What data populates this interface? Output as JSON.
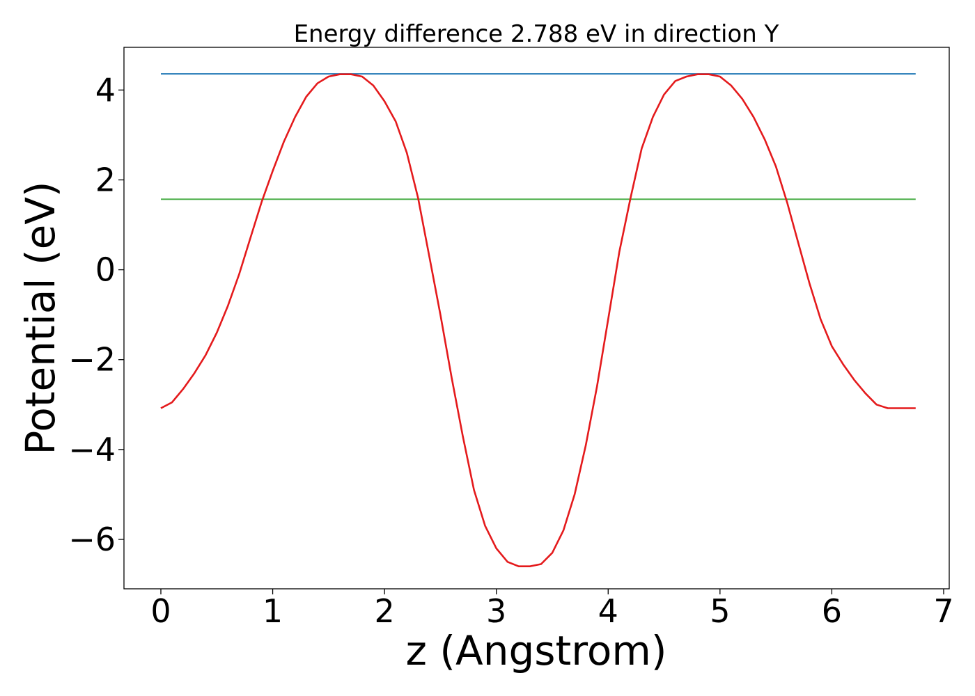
{
  "chart_data": {
    "type": "line",
    "title": "Energy difference 2.788 eV in direction Y",
    "xlabel": "z (Angstrom)",
    "ylabel": "Potential (eV)",
    "xlim": [
      -0.33,
      7.05
    ],
    "ylim": [
      -7.1,
      4.95
    ],
    "x_ticks": [
      0,
      1,
      2,
      3,
      4,
      5,
      6,
      7
    ],
    "x_tick_labels": [
      "0",
      "1",
      "2",
      "3",
      "4",
      "5",
      "6",
      "7"
    ],
    "y_ticks": [
      -6,
      -4,
      -2,
      0,
      2,
      4
    ],
    "y_tick_labels": [
      "−6",
      "−4",
      "−2",
      "0",
      "2",
      "4"
    ],
    "grid": false,
    "colors": {
      "potential": "#e41a1c",
      "max_line": "#1f77b4",
      "mean_line": "#4daf4a"
    },
    "series": [
      {
        "key": "potential",
        "x": [
          0.0,
          0.1,
          0.2,
          0.3,
          0.4,
          0.5,
          0.6,
          0.7,
          0.8,
          0.9,
          1.0,
          1.1,
          1.2,
          1.3,
          1.4,
          1.5,
          1.6,
          1.7,
          1.8,
          1.9,
          2.0,
          2.1,
          2.2,
          2.3,
          2.4,
          2.5,
          2.6,
          2.7,
          2.8,
          2.9,
          3.0,
          3.1,
          3.2,
          3.3,
          3.4,
          3.5,
          3.6,
          3.7,
          3.8,
          3.9,
          4.0,
          4.1,
          4.2,
          4.3,
          4.4,
          4.5,
          4.6,
          4.7,
          4.8,
          4.9,
          5.0,
          5.1,
          5.2,
          5.3,
          5.4,
          5.5,
          5.6,
          5.7,
          5.8,
          5.9,
          6.0,
          6.1,
          6.2,
          6.3,
          6.4,
          6.5,
          6.6,
          6.75
        ],
        "y": [
          -3.08,
          -2.95,
          -2.65,
          -2.3,
          -1.9,
          -1.4,
          -0.8,
          -0.1,
          0.7,
          1.5,
          2.2,
          2.85,
          3.4,
          3.85,
          4.15,
          4.3,
          4.35,
          4.35,
          4.3,
          4.1,
          3.75,
          3.3,
          2.6,
          1.6,
          0.3,
          -1.0,
          -2.4,
          -3.7,
          -4.9,
          -5.7,
          -6.2,
          -6.5,
          -6.6,
          -6.6,
          -6.55,
          -6.3,
          -5.8,
          -5.0,
          -3.9,
          -2.6,
          -1.1,
          0.4,
          1.6,
          2.7,
          3.4,
          3.9,
          4.2,
          4.3,
          4.35,
          4.35,
          4.3,
          4.1,
          3.8,
          3.4,
          2.9,
          2.3,
          1.5,
          0.6,
          -0.3,
          -1.1,
          -1.7,
          -2.1,
          -2.45,
          -2.75,
          -3.0,
          -3.08,
          -3.08,
          -3.08
        ]
      },
      {
        "key": "max_line",
        "x": [
          0.0,
          6.75
        ],
        "y": [
          4.36,
          4.36
        ]
      },
      {
        "key": "mean_line",
        "x": [
          0.0,
          6.75
        ],
        "y": [
          1.57,
          1.57
        ]
      }
    ]
  }
}
